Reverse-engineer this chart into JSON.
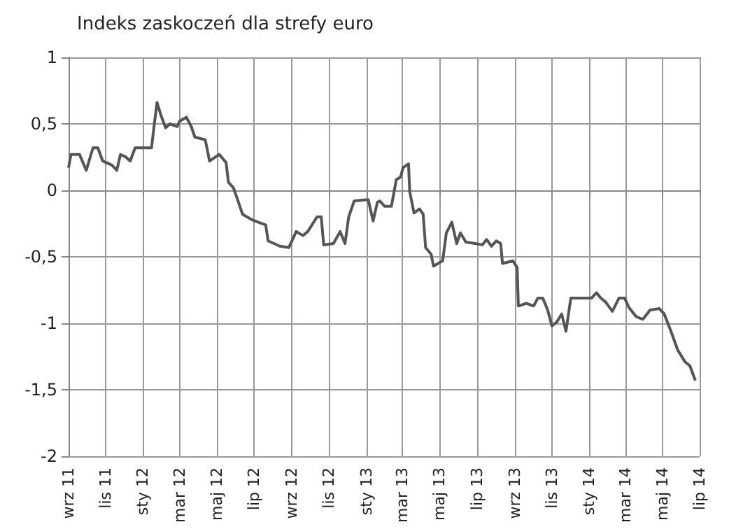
{
  "chart_data": {
    "type": "line",
    "title": "Indeks zaskoczeń dla strefy euro",
    "x": [
      "2011-09-01",
      "2011-09-05",
      "2011-09-19",
      "2011-09-30",
      "2011-10-11",
      "2011-10-19",
      "2011-10-27",
      "2011-11-11",
      "2011-11-19",
      "2011-11-25",
      "2011-12-04",
      "2011-12-11",
      "2011-12-19",
      "2012-01-15",
      "2012-01-19",
      "2012-01-24",
      "2012-01-30",
      "2012-02-07",
      "2012-02-14",
      "2012-02-26",
      "2012-03-01",
      "2012-03-12",
      "2012-03-20",
      "2012-03-26",
      "2012-04-12",
      "2012-04-19",
      "2012-05-05",
      "2012-05-16",
      "2012-05-20",
      "2012-05-28",
      "2012-06-04",
      "2012-06-12",
      "2012-06-27",
      "2012-07-08",
      "2012-07-20",
      "2012-07-24",
      "2012-08-12",
      "2012-08-27",
      "2012-09-08",
      "2012-09-19",
      "2012-09-27",
      "2012-10-12",
      "2012-10-19",
      "2012-10-23",
      "2012-11-08",
      "2012-11-19",
      "2012-11-27",
      "2012-12-03",
      "2012-12-12",
      "2013-01-04",
      "2013-01-12",
      "2013-01-19",
      "2013-01-23",
      "2013-01-31",
      "2013-02-11",
      "2013-02-19",
      "2013-02-26",
      "2013-03-02",
      "2013-03-11",
      "2013-03-13",
      "2013-03-20",
      "2013-03-29",
      "2013-04-04",
      "2013-04-08",
      "2013-04-17",
      "2013-04-21",
      "2013-05-06",
      "2013-05-12",
      "2013-05-21",
      "2013-05-29",
      "2013-06-04",
      "2013-06-13",
      "2013-06-28",
      "2013-07-10",
      "2013-07-17",
      "2013-07-25",
      "2013-08-02",
      "2013-08-09",
      "2013-08-12",
      "2013-08-29",
      "2013-09-05",
      "2013-09-07",
      "2013-09-20",
      "2013-10-02",
      "2013-10-09",
      "2013-10-17",
      "2013-10-25",
      "2013-11-01",
      "2013-11-09",
      "2013-11-17",
      "2013-11-24",
      "2013-12-02",
      "2013-12-13",
      "2014-01-05",
      "2014-01-13",
      "2014-01-20",
      "2014-01-28",
      "2014-02-08",
      "2014-02-19",
      "2014-02-28",
      "2014-03-07",
      "2014-03-19",
      "2014-03-30",
      "2014-04-11",
      "2014-04-26",
      "2014-05-04",
      "2014-05-15",
      "2014-05-26",
      "2014-06-07",
      "2014-06-15",
      "2014-06-24"
    ],
    "series": [
      {
        "color": "#555555",
        "values": [
          0.17,
          0.27,
          0.27,
          0.15,
          0.32,
          0.32,
          0.22,
          0.19,
          0.15,
          0.27,
          0.25,
          0.22,
          0.32,
          0.32,
          0.48,
          0.66,
          0.57,
          0.47,
          0.5,
          0.48,
          0.52,
          0.55,
          0.48,
          0.4,
          0.38,
          0.22,
          0.27,
          0.21,
          0.06,
          0.02,
          -0.07,
          -0.18,
          -0.22,
          -0.24,
          -0.26,
          -0.38,
          -0.42,
          -0.43,
          -0.31,
          -0.34,
          -0.31,
          -0.2,
          -0.2,
          -0.41,
          -0.4,
          -0.31,
          -0.4,
          -0.2,
          -0.08,
          -0.07,
          -0.23,
          -0.09,
          -0.08,
          -0.12,
          -0.12,
          0.08,
          0.1,
          0.17,
          0.2,
          -0.01,
          -0.17,
          -0.14,
          -0.18,
          -0.43,
          -0.48,
          -0.57,
          -0.53,
          -0.32,
          -0.24,
          -0.4,
          -0.32,
          -0.39,
          -0.4,
          -0.41,
          -0.37,
          -0.42,
          -0.38,
          -0.4,
          -0.55,
          -0.53,
          -0.58,
          -0.87,
          -0.85,
          -0.87,
          -0.81,
          -0.81,
          -0.9,
          -1.02,
          -0.99,
          -0.93,
          -1.06,
          -0.81,
          -0.81,
          -0.81,
          -0.77,
          -0.81,
          -0.84,
          -0.91,
          -0.81,
          -0.81,
          -0.88,
          -0.95,
          -0.97,
          -0.9,
          -0.89,
          -0.93,
          -1.06,
          -1.2,
          -1.29,
          -1.32,
          -1.43
        ]
      }
    ],
    "xlim": [
      "2011-09-01",
      "2014-07-01"
    ],
    "xticks": [
      {
        "value": "2011-09-01",
        "label": "wrz 11"
      },
      {
        "value": "2011-11-01",
        "label": "lis 11"
      },
      {
        "value": "2012-01-01",
        "label": "sty 12"
      },
      {
        "value": "2012-03-01",
        "label": "mar 12"
      },
      {
        "value": "2012-05-01",
        "label": "maj 12"
      },
      {
        "value": "2012-07-01",
        "label": "lip 12"
      },
      {
        "value": "2012-09-01",
        "label": "wrz 12"
      },
      {
        "value": "2012-11-01",
        "label": "lis 12"
      },
      {
        "value": "2013-01-01",
        "label": "sty 13"
      },
      {
        "value": "2013-03-01",
        "label": "mar 13"
      },
      {
        "value": "2013-05-01",
        "label": "maj 13"
      },
      {
        "value": "2013-07-01",
        "label": "lip 13"
      },
      {
        "value": "2013-09-01",
        "label": "wrz 13"
      },
      {
        "value": "2013-11-01",
        "label": "lis 13"
      },
      {
        "value": "2014-01-01",
        "label": "sty 14"
      },
      {
        "value": "2014-03-01",
        "label": "mar 14"
      },
      {
        "value": "2014-05-01",
        "label": "maj 14"
      },
      {
        "value": "2014-07-01",
        "label": "lip 14"
      }
    ],
    "ylim": [
      -2,
      1
    ],
    "yticks": [
      -2,
      {
        "value": -1.5,
        "label": "-1,5"
      },
      -1,
      {
        "value": -0.5,
        "label": "-0,5"
      },
      0,
      {
        "value": 0.5,
        "label": "0,5"
      },
      1
    ],
    "grid": true,
    "marker": "none",
    "line_style": "solid"
  }
}
